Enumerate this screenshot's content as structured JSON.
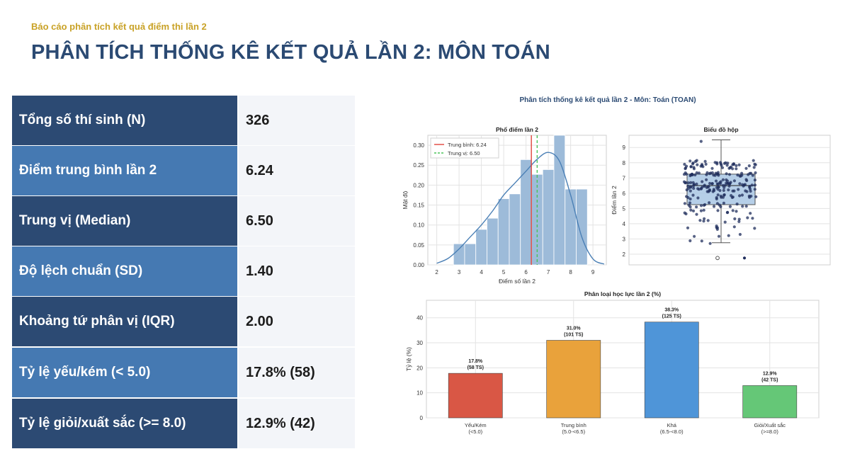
{
  "header": {
    "subtitle": "Báo cáo phân tích kết quả điểm thi lần 2",
    "title": "PHÂN TÍCH THỐNG KÊ KẾT QUẢ LẦN 2: MÔN TOÁN"
  },
  "stats": [
    {
      "label": "Tổng số thí sinh (N)",
      "value": "326",
      "style": "dark"
    },
    {
      "label": "Điểm trung bình lần 2",
      "value": "6.24",
      "style": "light"
    },
    {
      "label": "Trung vị (Median)",
      "value": "6.50",
      "style": "dark"
    },
    {
      "label": "Độ lệch chuẩn (SD)",
      "value": "1.40",
      "style": "light"
    },
    {
      "label": "Khoảng tứ phân vị (IQR)",
      "value": "2.00",
      "style": "dark"
    },
    {
      "label": "Tỷ lệ yếu/kém (< 5.0)",
      "value": "17.8% (58)",
      "style": "light"
    },
    {
      "label": "Tỷ lệ giỏi/xuất sắc (>= 8.0)",
      "value": "12.9% (42)",
      "style": "dark"
    }
  ],
  "colors": {
    "dark": "#2c4a73",
    "light": "#4579b2",
    "subtitle": "#c9a227",
    "hist_bar": "#9dbbd9",
    "kde": "#4a7fb5",
    "mean_line": "#e0443a",
    "median_line": "#4cc35a",
    "box_points": "#1f2d5c"
  },
  "chart_data": [
    {
      "type": "histogram",
      "figure_title": "Phân tích thống kê kết quả lần 2 - Môn: Toán (TOAN)",
      "title": "Phổ điểm lần 2",
      "xlabel": "Điểm số lần 2",
      "ylabel": "Mật độ",
      "xlim": [
        1.6,
        9.6
      ],
      "ylim": [
        0,
        0.325
      ],
      "xticks": [
        2,
        3,
        4,
        5,
        6,
        7,
        8,
        9
      ],
      "yticks": [
        0.0,
        0.05,
        0.1,
        0.15,
        0.2,
        0.25,
        0.3
      ],
      "bins": [
        {
          "x0": 2.75,
          "x1": 3.25,
          "density": 0.053
        },
        {
          "x0": 3.25,
          "x1": 3.75,
          "density": 0.053
        },
        {
          "x0": 3.75,
          "x1": 4.25,
          "density": 0.089
        },
        {
          "x0": 4.25,
          "x1": 4.75,
          "density": 0.117
        },
        {
          "x0": 4.75,
          "x1": 5.25,
          "density": 0.166
        },
        {
          "x0": 5.25,
          "x1": 5.75,
          "density": 0.178
        },
        {
          "x0": 5.75,
          "x1": 6.25,
          "density": 0.264
        },
        {
          "x0": 6.25,
          "x1": 6.75,
          "density": 0.227
        },
        {
          "x0": 6.75,
          "x1": 7.25,
          "density": 0.239
        },
        {
          "x0": 7.25,
          "x1": 7.75,
          "density": 0.325
        },
        {
          "x0": 7.75,
          "x1": 8.25,
          "density": 0.19
        },
        {
          "x0": 8.25,
          "x1": 8.75,
          "density": 0.19
        }
      ],
      "kde": {
        "x": [
          2.0,
          2.5,
          3.0,
          3.5,
          4.0,
          4.5,
          5.0,
          5.5,
          6.0,
          6.5,
          7.0,
          7.5,
          8.0,
          8.5,
          9.0,
          9.5
        ],
        "y": [
          0.004,
          0.016,
          0.04,
          0.07,
          0.1,
          0.135,
          0.175,
          0.205,
          0.235,
          0.265,
          0.282,
          0.26,
          0.175,
          0.07,
          0.015,
          0.002
        ]
      },
      "mean": 6.24,
      "median": 6.5,
      "legend": [
        "Trung bình: 6.24",
        "Trung vị: 6.50"
      ]
    },
    {
      "type": "box",
      "title": "Biểu đồ hộp",
      "ylabel": "Điểm lần 2",
      "ylim": [
        1.3,
        9.8
      ],
      "yticks": [
        2,
        3,
        4,
        5,
        6,
        7,
        8,
        9
      ],
      "whisker_low": 2.75,
      "q1": 5.25,
      "median": 6.5,
      "q3": 7.25,
      "whisker_high": 9.5,
      "outliers": [
        1.75
      ]
    },
    {
      "type": "bar",
      "title": "Phân loại học lực lần 2 (%)",
      "ylabel": "Tỷ lệ (%)",
      "ylim": [
        0,
        47
      ],
      "yticks": [
        0,
        10,
        20,
        30,
        40
      ],
      "categories": [
        {
          "line1": "Yếu/Kém",
          "line2": "(<5.0)"
        },
        {
          "line1": "Trung bình",
          "line2": "(5.0-<6.5)"
        },
        {
          "line1": "Khá",
          "line2": "(6.5-<8.0)"
        },
        {
          "line1": "Giỏi/Xuất sắc",
          "line2": "(>=8.0)"
        }
      ],
      "values": [
        17.8,
        31.0,
        38.3,
        12.9
      ],
      "labels": [
        {
          "pct": "17.8%",
          "count": "(58 TS)"
        },
        {
          "pct": "31.0%",
          "count": "(101 TS)"
        },
        {
          "pct": "38.3%",
          "count": "(125 TS)"
        },
        {
          "pct": "12.9%",
          "count": "(42 TS)"
        }
      ],
      "colors": [
        "#d95745",
        "#e9a23b",
        "#4f95d8",
        "#65c777"
      ]
    }
  ]
}
